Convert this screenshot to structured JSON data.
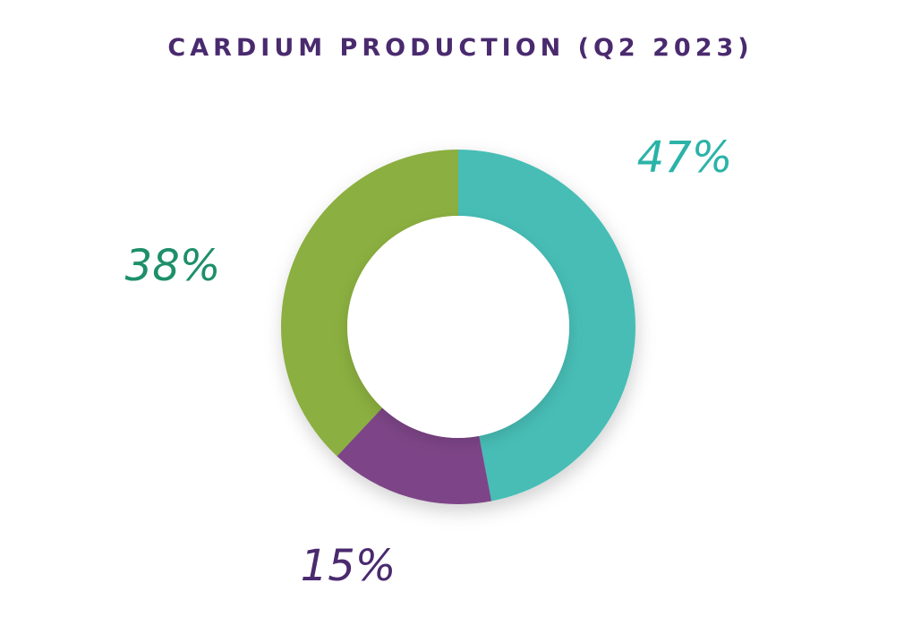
{
  "chart_data": {
    "type": "pie",
    "title": "CARDIUM PRODUCTION (Q2 2023)",
    "values": [
      47,
      15,
      38
    ],
    "labels": [
      "47%",
      "15%",
      "38%"
    ],
    "colors": [
      "#47bdb5",
      "#7d4487",
      "#8baf40"
    ],
    "label_colors": [
      "#2bb3a8",
      "#4a2a6e",
      "#1d8f6a"
    ],
    "style": "donut"
  }
}
